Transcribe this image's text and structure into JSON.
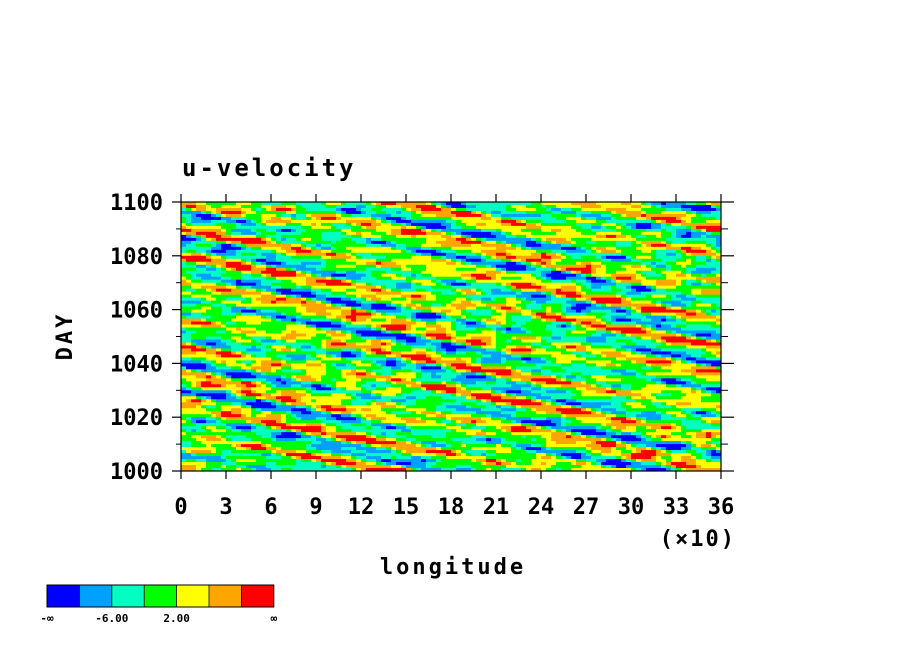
{
  "chart_data": {
    "type": "heatmap",
    "title": "u-velocity",
    "xlabel": "longitude",
    "ylabel": "DAY",
    "x_multiplier_label": "(×10)",
    "xlim": [
      0,
      36
    ],
    "ylim": [
      1000,
      1100
    ],
    "x_ticks": [
      0,
      3,
      6,
      9,
      12,
      15,
      18,
      21,
      24,
      27,
      30,
      33,
      36
    ],
    "x_tick_labels": [
      "0",
      "3",
      "6",
      "9",
      "12",
      "15",
      "18",
      "21",
      "24",
      "27",
      "30",
      "33",
      "36"
    ],
    "y_ticks": [
      1000,
      1020,
      1040,
      1060,
      1080,
      1100
    ],
    "y_tick_labels": [
      "1000",
      "1020",
      "1040",
      "1060",
      "1080",
      "1100"
    ],
    "colorbar": {
      "colors": [
        "#0000ff",
        "#00a0ff",
        "#00ffc0",
        "#00ff00",
        "#ffff00",
        "#ffa500",
        "#ff0000"
      ],
      "labels": [
        "-∞",
        "-6.00",
        "2.00",
        "∞"
      ]
    }
  }
}
